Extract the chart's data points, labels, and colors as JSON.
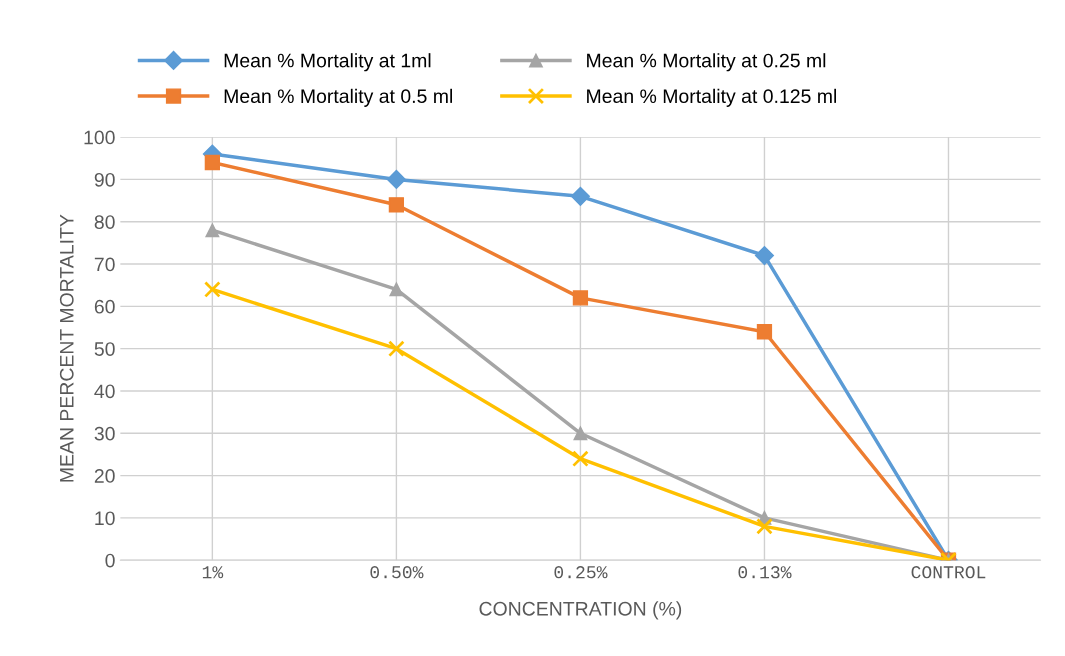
{
  "chart_data": {
    "type": "line",
    "xlabel": "CONCENTRATION (%)",
    "ylabel": "MEAN PERCENT MORTALITY",
    "categories": [
      "1%",
      "0.50%",
      "0.25%",
      "0.13%",
      "CONTROL"
    ],
    "series": [
      {
        "name": "Mean % Mortality at 1ml",
        "color": "#5b9bd5",
        "marker": "diamond",
        "values": [
          96,
          90,
          86,
          72,
          0
        ]
      },
      {
        "name": "Mean % Mortality at 0.5 ml",
        "color": "#ed7d31",
        "marker": "square",
        "values": [
          94,
          84,
          62,
          54,
          0
        ]
      },
      {
        "name": "Mean % Mortality at 0.25 ml",
        "color": "#a5a5a5",
        "marker": "triangle",
        "values": [
          78,
          64,
          30,
          10,
          0
        ]
      },
      {
        "name": "Mean % Mortality at 0.125 ml",
        "color": "#ffc000",
        "marker": "cross",
        "values": [
          64,
          50,
          24,
          8,
          0
        ]
      }
    ],
    "ylim": [
      0,
      100
    ],
    "yticks": [
      0,
      10,
      20,
      30,
      40,
      50,
      60,
      70,
      80,
      90,
      100
    ],
    "grid": true,
    "legend": "top",
    "line_style": "solid"
  }
}
